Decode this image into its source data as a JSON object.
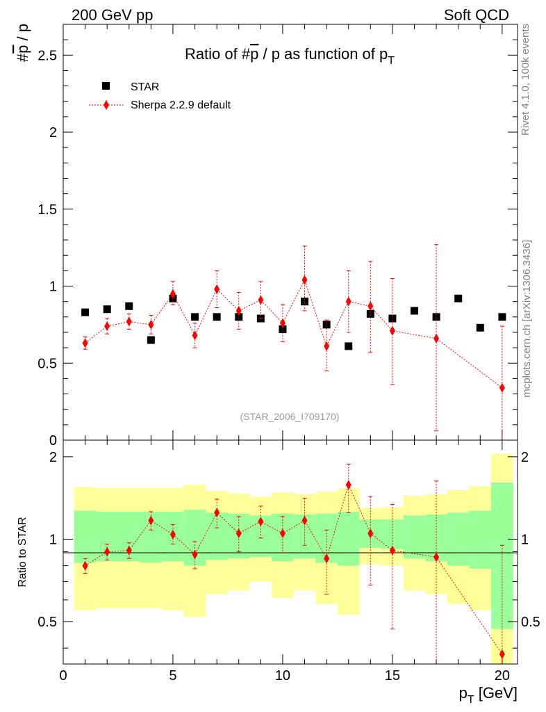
{
  "header": {
    "left": "200 GeV pp",
    "right": "Soft QCD"
  },
  "side_text": {
    "rivet": "Rivet 4.1.0,  100k events",
    "mcplots": "mcplots.cern.ch [arXiv:1306.3436]"
  },
  "chart_data": [
    {
      "type": "scatter",
      "title_main": "Ratio of #",
      "title_pbar": "p",
      "title_mid": " / p as function of p",
      "title_sub": "T",
      "ylabel_hash": "#",
      "ylabel_pbar": "p",
      "ylabel_rest": " / p",
      "analysis_id": "(STAR_2006_I709170)",
      "xlim": [
        0,
        20.7
      ],
      "ylim": [
        0,
        2.7
      ],
      "yticks": [
        0.5,
        1,
        1.5,
        2,
        2.5
      ],
      "ytick_labels": [
        "0.5",
        "1",
        "1.5",
        "2",
        "2.5"
      ],
      "ytick_bottom_label": "0",
      "legend": [
        {
          "name": "STAR",
          "marker": "square",
          "color": "#000000"
        },
        {
          "name": "Sherpa 2.2.9 default",
          "marker": "diamond",
          "color": "#ff0000"
        }
      ],
      "series": [
        {
          "name": "STAR",
          "x": [
            1,
            2,
            3,
            4,
            5,
            6,
            7,
            8,
            9,
            10,
            11,
            12,
            13,
            14,
            15,
            16,
            17,
            18,
            19,
            20
          ],
          "y": [
            0.83,
            0.85,
            0.87,
            0.65,
            0.92,
            0.8,
            0.8,
            0.8,
            0.79,
            0.72,
            0.9,
            0.75,
            0.61,
            0.82,
            0.79,
            0.84,
            0.8,
            0.92,
            0.73,
            0.8
          ]
        },
        {
          "name": "Sherpa 2.2.9 default",
          "x": [
            1,
            2,
            3,
            4,
            5,
            6,
            7,
            8,
            9,
            10,
            11,
            12,
            13,
            14,
            15,
            17,
            20
          ],
          "y": [
            0.63,
            0.74,
            0.77,
            0.75,
            0.95,
            0.68,
            0.98,
            0.84,
            0.91,
            0.76,
            1.04,
            0.61,
            0.9,
            0.87,
            0.71,
            0.66,
            0.34
          ],
          "err_lo": [
            0.04,
            0.05,
            0.05,
            0.06,
            0.07,
            0.08,
            0.12,
            0.12,
            0.12,
            0.12,
            0.2,
            0.16,
            0.2,
            0.3,
            0.35,
            0.6,
            0.34
          ],
          "err_hi": [
            0.04,
            0.05,
            0.05,
            0.06,
            0.08,
            0.08,
            0.12,
            0.12,
            0.12,
            0.12,
            0.22,
            0.17,
            0.2,
            0.29,
            0.34,
            0.61,
            0.4
          ]
        }
      ]
    },
    {
      "type": "scatter",
      "ylabel": "Ratio to STAR",
      "xlabel_p": "p",
      "xlabel_sub": "T",
      "xlabel_unit": " [GeV]",
      "xlim": [
        0,
        20.7
      ],
      "ylim": [
        0.35,
        2.3
      ],
      "yticks": [
        0.5,
        1,
        2
      ],
      "ytick_labels": [
        "0.5",
        "1",
        "2"
      ],
      "xticks": [
        0,
        5,
        10,
        15,
        20
      ],
      "xtick_labels": [
        "0",
        "5",
        "10",
        "15",
        "20"
      ],
      "bands": {
        "edges": [
          0.5,
          1.5,
          2.5,
          3.5,
          4.5,
          5.5,
          6.5,
          7.5,
          8.5,
          9.5,
          10.5,
          11.5,
          12.5,
          13.5,
          14.5,
          15.5,
          16.5,
          17.5,
          18.5,
          19.5,
          20.5
        ],
        "green_lo": [
          0.82,
          0.83,
          0.83,
          0.82,
          0.83,
          0.8,
          0.84,
          0.85,
          0.86,
          0.83,
          0.85,
          0.82,
          0.8,
          0.93,
          0.92,
          0.85,
          0.83,
          0.8,
          0.78,
          0.47
        ],
        "green_hi": [
          1.27,
          1.26,
          1.26,
          1.26,
          1.26,
          1.28,
          1.25,
          1.24,
          1.22,
          1.24,
          1.23,
          1.24,
          1.26,
          1.18,
          1.18,
          1.22,
          1.23,
          1.25,
          1.27,
          1.61
        ],
        "yellow_lo": [
          0.55,
          0.56,
          0.56,
          0.56,
          0.55,
          0.52,
          0.63,
          0.65,
          0.7,
          0.61,
          0.65,
          0.58,
          0.53,
          0.81,
          0.8,
          0.65,
          0.63,
          0.58,
          0.55,
          0.35
        ],
        "yellow_hi": [
          1.55,
          1.54,
          1.54,
          1.54,
          1.54,
          1.58,
          1.5,
          1.47,
          1.43,
          1.48,
          1.46,
          1.49,
          1.53,
          1.3,
          1.31,
          1.44,
          1.46,
          1.51,
          1.56,
          2.05
        ]
      },
      "series": [
        {
          "name": "Sherpa 2.2.9 default",
          "x": [
            1,
            2,
            3,
            4,
            5,
            6,
            7,
            8,
            9,
            10,
            11,
            12,
            13,
            14,
            15,
            17,
            20
          ],
          "y": [
            0.8,
            0.9,
            0.91,
            1.17,
            1.04,
            0.88,
            1.25,
            1.05,
            1.16,
            1.05,
            1.17,
            0.85,
            1.58,
            1.05,
            0.91,
            0.86,
            0.38
          ],
          "err_lo": [
            0.05,
            0.06,
            0.06,
            0.09,
            0.08,
            0.1,
            0.15,
            0.15,
            0.15,
            0.16,
            0.22,
            0.22,
            0.33,
            0.37,
            0.44,
            0.8,
            0.38
          ],
          "err_hi": [
            0.05,
            0.06,
            0.06,
            0.09,
            0.09,
            0.1,
            0.15,
            0.16,
            0.16,
            0.16,
            0.24,
            0.23,
            0.3,
            0.38,
            0.43,
            0.77,
            0.57
          ]
        }
      ]
    }
  ]
}
